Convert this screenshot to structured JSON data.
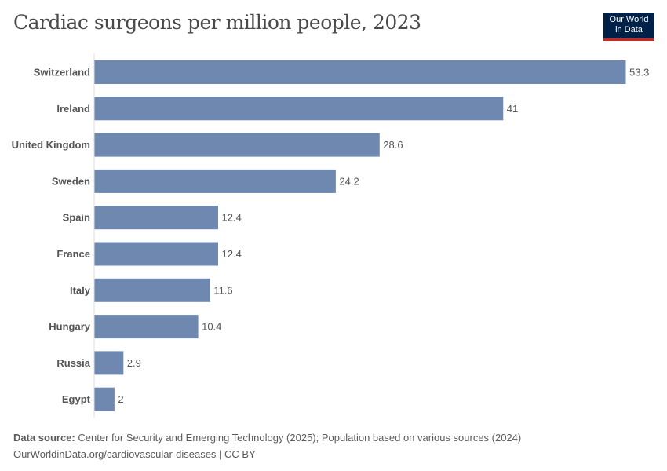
{
  "title": "Cardiac surgeons per million people, 2023",
  "logo": {
    "line1": "Our World",
    "line2": "in Data"
  },
  "footer": {
    "source_label": "Data source:",
    "source_text": "Center for Security and Emerging Technology (2025); Population based on various sources (2024)",
    "url": "OurWorldinData.org/cardiovascular-diseases | CC BY"
  },
  "colors": {
    "bar": "#6f88b0"
  },
  "chart_data": {
    "type": "bar",
    "orientation": "horizontal",
    "title": "Cardiac surgeons per million people, 2023",
    "categories": [
      "Switzerland",
      "Ireland",
      "United Kingdom",
      "Sweden",
      "Spain",
      "France",
      "Italy",
      "Hungary",
      "Russia",
      "Egypt"
    ],
    "values": [
      53.3,
      41,
      28.6,
      24.2,
      12.4,
      12.4,
      11.6,
      10.4,
      2.9,
      2
    ],
    "labels": [
      "53.3",
      "41",
      "28.6",
      "24.2",
      "12.4",
      "12.4",
      "11.6",
      "10.4",
      "2.9",
      "2"
    ],
    "xlim": [
      0,
      53.3
    ],
    "grid": false
  }
}
